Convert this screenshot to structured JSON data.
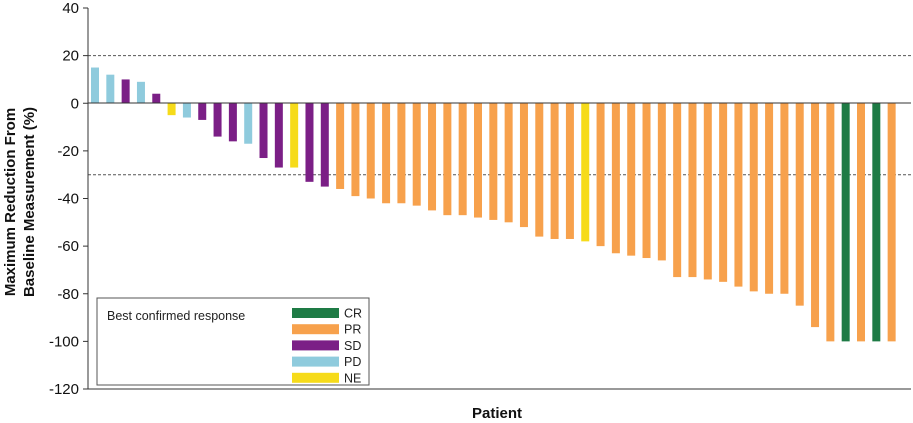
{
  "chart_data": {
    "type": "bar",
    "title": "",
    "xlabel": "Patient",
    "ylabel_lines": [
      "Maximum Reduction From",
      "Baseline Measurement (%)"
    ],
    "ylim": [
      -120,
      40
    ],
    "yticks": [
      40,
      20,
      0,
      -20,
      -40,
      -60,
      -80,
      -100,
      -120
    ],
    "reference_lines": [
      20,
      -30
    ],
    "grid": false,
    "legend": {
      "title": "Best confirmed response",
      "position": "bottom-left",
      "entries": [
        {
          "key": "CR",
          "label": "CR",
          "color": "#1E7B45"
        },
        {
          "key": "PR",
          "label": "PR",
          "color": "#F7A14C"
        },
        {
          "key": "SD",
          "label": "SD",
          "color": "#7B1F86"
        },
        {
          "key": "PD",
          "label": "PD",
          "color": "#8FCBDD"
        },
        {
          "key": "NE",
          "label": "NE",
          "color": "#F6DB1A"
        }
      ]
    },
    "values": [
      15,
      12,
      10,
      9,
      4,
      -5,
      -6,
      -7,
      -14,
      -16,
      -17,
      -23,
      -27,
      -27,
      -33,
      -35,
      -36,
      -39,
      -40,
      -42,
      -42,
      -43,
      -45,
      -47,
      -47,
      -48,
      -49,
      -50,
      -52,
      -56,
      -57,
      -57,
      -58,
      -60,
      -63,
      -64,
      -65,
      -66,
      -73,
      -73,
      -74,
      -75,
      -77,
      -79,
      -80,
      -80,
      -85,
      -94,
      -100,
      -100,
      -100,
      -100,
      -100
    ],
    "responses": [
      "PD",
      "PD",
      "SD",
      "PD",
      "SD",
      "NE",
      "PD",
      "SD",
      "SD",
      "SD",
      "PD",
      "SD",
      "SD",
      "NE",
      "SD",
      "SD",
      "PR",
      "PR",
      "PR",
      "PR",
      "PR",
      "PR",
      "PR",
      "PR",
      "PR",
      "PR",
      "PR",
      "PR",
      "PR",
      "PR",
      "PR",
      "PR",
      "NE",
      "PR",
      "PR",
      "PR",
      "PR",
      "PR",
      "PR",
      "PR",
      "PR",
      "PR",
      "PR",
      "PR",
      "PR",
      "PR",
      "PR",
      "PR",
      "PR",
      "CR",
      "PR",
      "CR",
      "PR"
    ]
  }
}
